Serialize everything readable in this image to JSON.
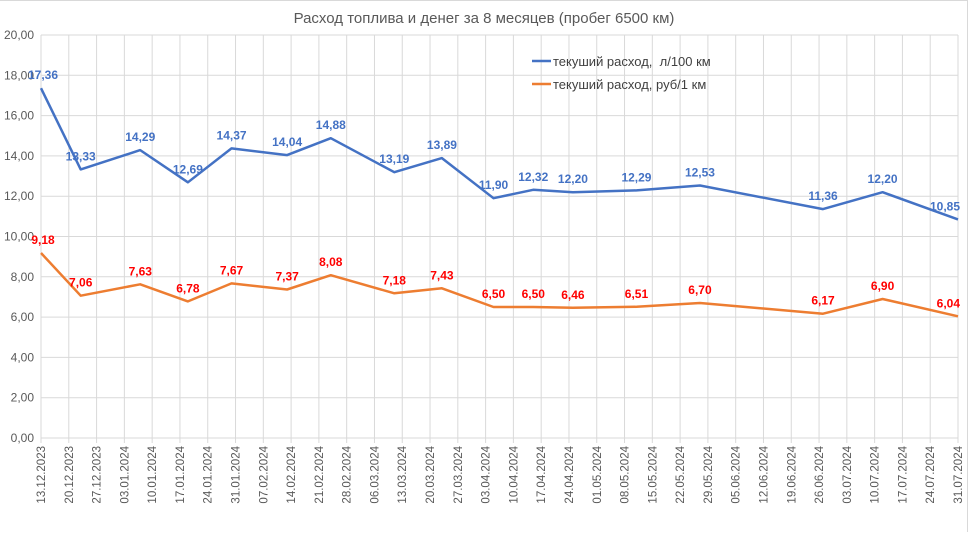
{
  "chart_data": {
    "type": "line",
    "title": "Расход топлива и денег за 8 месяцев (пробег 6500 км)",
    "xlabel": "",
    "ylabel": "",
    "ylim": [
      0,
      20
    ],
    "y_ticks": [
      "0,00",
      "2,00",
      "4,00",
      "6,00",
      "8,00",
      "10,00",
      "12,00",
      "14,00",
      "16,00",
      "18,00",
      "20,00"
    ],
    "y_tick_values": [
      0,
      2,
      4,
      6,
      8,
      10,
      12,
      14,
      16,
      18,
      20
    ],
    "x_axis_type": "date",
    "x_range": [
      "13.12.2023",
      "31.07.2024"
    ],
    "x_ticks": [
      "13.12.2023",
      "20.12.2023",
      "27.12.2023",
      "03.01.2024",
      "10.01.2024",
      "17.01.2024",
      "24.01.2024",
      "31.01.2024",
      "07.02.2024",
      "14.02.2024",
      "21.02.2024",
      "28.02.2024",
      "06.03.2024",
      "13.03.2024",
      "20.03.2024",
      "27.03.2024",
      "03.04.2024",
      "10.04.2024",
      "17.04.2024",
      "24.04.2024",
      "01.05.2024",
      "08.05.2024",
      "15.05.2024",
      "22.05.2024",
      "29.05.2024",
      "05.06.2024",
      "12.06.2024",
      "19.06.2024",
      "26.06.2024",
      "03.07.2024",
      "10.07.2024",
      "17.07.2024",
      "24.07.2024",
      "31.07.2024"
    ],
    "grid": true,
    "legend_position": "top-right",
    "x": [
      "13.12.2023",
      "23.12.2023",
      "07.01.2024",
      "19.01.2024",
      "30.01.2024",
      "13.02.2024",
      "24.02.2024",
      "11.03.2024",
      "23.03.2024",
      "05.04.2024",
      "15.04.2024",
      "25.04.2024",
      "11.05.2024",
      "27.05.2024",
      "27.06.2024",
      "12.07.2024",
      "31.07.2024"
    ],
    "series": [
      {
        "name": "текуший расход,  л/100 км",
        "color": "#4472c4",
        "label_color": "#4472c4",
        "values": [
          17.36,
          13.33,
          14.29,
          12.69,
          14.37,
          14.04,
          14.88,
          13.19,
          13.89,
          11.9,
          12.32,
          12.2,
          12.29,
          12.53,
          11.36,
          12.2,
          10.85
        ],
        "labels": [
          "17,36",
          "13,33",
          "14,29",
          "12,69",
          "14,37",
          "14,04",
          "14,88",
          "13,19",
          "13,89",
          "11,90",
          "12,32",
          "12,20",
          "12,29",
          "12,53",
          "11,36",
          "12,20",
          "10,85"
        ]
      },
      {
        "name": "текуший расход, руб/1 км",
        "color": "#ed7d31",
        "label_color": "#ff0000",
        "values": [
          9.18,
          7.06,
          7.63,
          6.78,
          7.67,
          7.37,
          8.08,
          7.18,
          7.43,
          6.5,
          6.5,
          6.46,
          6.51,
          6.7,
          6.17,
          6.9,
          6.04
        ],
        "labels": [
          "9,18",
          "7,06",
          "7,63",
          "6,78",
          "7,67",
          "7,37",
          "8,08",
          "7,18",
          "7,43",
          "6,50",
          "6,50",
          "6,46",
          "6,51",
          "6,70",
          "6,17",
          "6,90",
          "6,04"
        ]
      }
    ]
  }
}
